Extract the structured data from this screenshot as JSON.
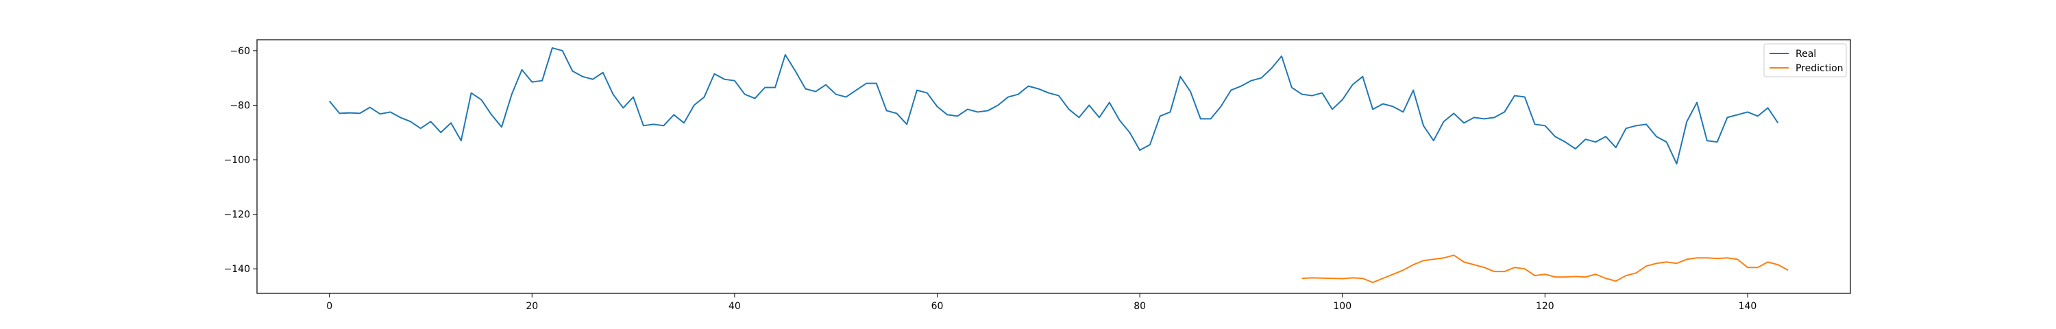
{
  "chart_data": {
    "type": "line",
    "title": "",
    "xlabel": "",
    "ylabel": "",
    "xlim": [
      -7.15,
      150.15
    ],
    "ylim": [
      -149,
      -56
    ],
    "xticks": [
      0,
      20,
      40,
      60,
      80,
      100,
      120,
      140
    ],
    "yticks": [
      -60,
      -80,
      -100,
      -120,
      -140
    ],
    "grid": false,
    "legend": {
      "position": "top-right"
    },
    "series": [
      {
        "name": "Real",
        "color": "#1f77b4",
        "x_start": 0,
        "values": [
          -78.5,
          -83.0,
          -82.8,
          -83.0,
          -80.8,
          -83.2,
          -82.5,
          -84.5,
          -86.0,
          -88.5,
          -86.0,
          -90.0,
          -86.5,
          -93.0,
          -75.5,
          -78.0,
          -83.5,
          -88.0,
          -76.0,
          -67.0,
          -71.5,
          -71.0,
          -59.0,
          -60.0,
          -67.5,
          -69.5,
          -70.5,
          -68.0,
          -76.0,
          -81.0,
          -77.0,
          -87.5,
          -87.0,
          -87.5,
          -83.5,
          -86.5,
          -80.0,
          -77.0,
          -68.5,
          -70.5,
          -71.0,
          -76.0,
          -77.5,
          -73.5,
          -73.5,
          -61.5,
          -67.5,
          -74.0,
          -75.0,
          -72.5,
          -76.0,
          -77.0,
          -74.5,
          -72.0,
          -72.0,
          -82.0,
          -83.0,
          -87.0,
          -74.5,
          -75.5,
          -80.5,
          -83.5,
          -84.0,
          -81.5,
          -82.5,
          -82.0,
          -80.0,
          -77.0,
          -76.0,
          -73.0,
          -74.0,
          -75.5,
          -76.5,
          -81.5,
          -84.5,
          -80.0,
          -84.5,
          -79.0,
          -85.5,
          -90.0,
          -96.5,
          -94.5,
          -84.0,
          -82.5,
          -69.5,
          -75.0,
          -85.0,
          -85.0,
          -80.5,
          -74.5,
          -73.0,
          -71.0,
          -70.0,
          -66.5,
          -62.0,
          -73.5,
          -76.0,
          -76.5,
          -75.5,
          -81.5,
          -78.0,
          -72.5,
          -69.5,
          -81.5,
          -79.5,
          -80.5,
          -82.5,
          -74.5,
          -87.5,
          -93.0,
          -86.0,
          -83.0,
          -86.5,
          -84.5,
          -85.0,
          -84.5,
          -82.5,
          -76.5,
          -77.0,
          -87.0,
          -87.5,
          -91.5,
          -93.5,
          -96.0,
          -92.5,
          -93.5,
          -91.5,
          -95.5,
          -88.5,
          -87.5,
          -87.0,
          -91.5,
          -93.5,
          -101.5,
          -86.0,
          -79.0,
          -93.0,
          -93.5,
          -84.5,
          -83.5,
          -82.5,
          -84.0,
          -81.0,
          -86.5
        ]
      },
      {
        "name": "Prediction",
        "color": "#ff7f0e",
        "x_start": 96,
        "values": [
          -143.5,
          -143.3,
          -143.4,
          -143.5,
          -143.6,
          -143.3,
          -143.5,
          -145.0,
          -143.5,
          -142.0,
          -140.5,
          -138.5,
          -137.0,
          -136.5,
          -136.0,
          -135.0,
          -137.5,
          -138.5,
          -139.5,
          -141.0,
          -141.0,
          -139.5,
          -140.0,
          -142.5,
          -142.0,
          -143.0,
          -143.0,
          -142.8,
          -143.0,
          -142.0,
          -143.5,
          -144.5,
          -142.5,
          -141.5,
          -139.0,
          -138.0,
          -137.5,
          -138.0,
          -136.5,
          -136.0,
          -136.0,
          -136.2,
          -136.0,
          -136.5,
          -139.5,
          -139.5,
          -137.5,
          -138.5,
          -140.5
        ]
      }
    ]
  }
}
